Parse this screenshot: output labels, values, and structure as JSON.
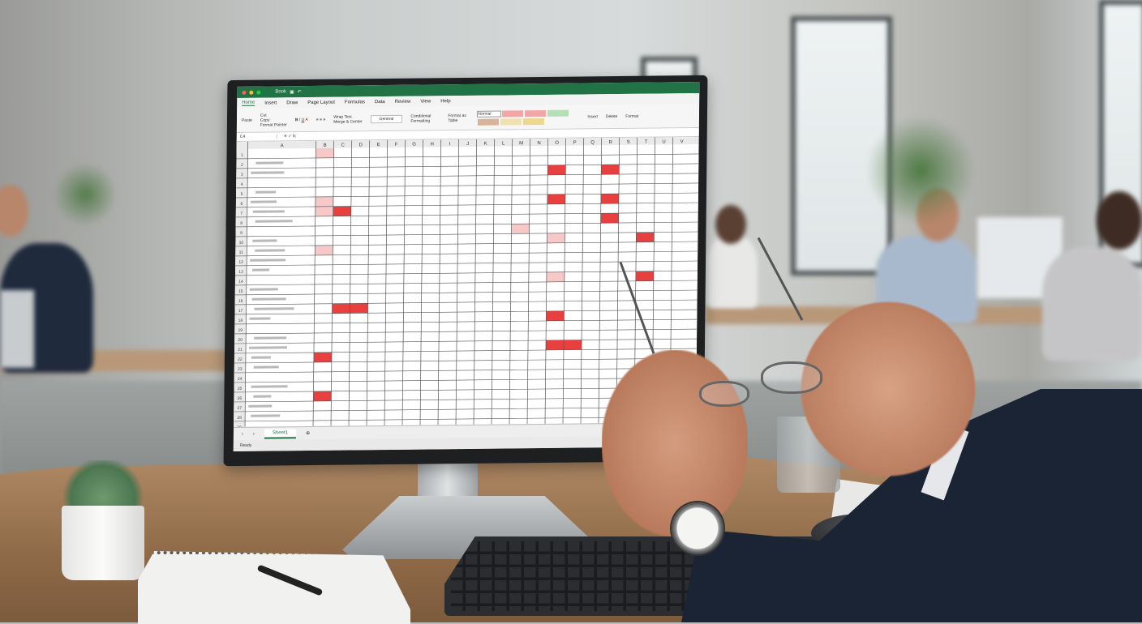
{
  "scene": {
    "description_elements": [
      "office",
      "monitor",
      "keyboard",
      "mouse",
      "notebook",
      "succulent",
      "pencil-cup",
      "eyeglasses",
      "wristwatch"
    ]
  },
  "spreadsheet": {
    "title": "Book",
    "menu_tabs": [
      "Home",
      "Insert",
      "Draw",
      "Page Layout",
      "Formulas",
      "Data",
      "Review",
      "View",
      "Help"
    ],
    "ribbon": {
      "paste": "Paste",
      "cut": "Cut",
      "copy": "Copy",
      "format_painter": "Format Painter",
      "wrap_text": "Wrap Text",
      "merge_center": "Merge & Center",
      "number_format": "General",
      "conditional_formatting": "Conditional Formatting",
      "format_as_table": "Format as Table",
      "style_normal": "Normal",
      "style_colors": [
        "#f4a6a6",
        "#f4a6a6",
        "#b5dfb7",
        "#d8b49a",
        "#f0e2b0",
        "#ecd98c"
      ],
      "insert": "Insert",
      "delete": "Delete",
      "format": "Format"
    },
    "name_box": "C4",
    "columns": [
      "A",
      "B",
      "C",
      "D",
      "E",
      "F",
      "G",
      "H",
      "I",
      "J",
      "K",
      "L",
      "M",
      "N",
      "O",
      "P",
      "Q",
      "R",
      "S",
      "T",
      "U",
      "V"
    ],
    "row_count": 29,
    "highlight_color": "#e8403e",
    "highlighted_cells": [
      {
        "row": 3,
        "col": "O"
      },
      {
        "row": 3,
        "col": "R"
      },
      {
        "row": 6,
        "col": "O"
      },
      {
        "row": 6,
        "col": "R"
      },
      {
        "row": 7,
        "col": "C"
      },
      {
        "row": 8,
        "col": "R"
      },
      {
        "row": 10,
        "col": "T"
      },
      {
        "row": 14,
        "col": "T"
      },
      {
        "row": 17,
        "col": "C"
      },
      {
        "row": 17,
        "col": "D"
      },
      {
        "row": 18,
        "col": "O"
      },
      {
        "row": 21,
        "col": "O"
      },
      {
        "row": 21,
        "col": "P"
      },
      {
        "row": 22,
        "col": "B"
      },
      {
        "row": 26,
        "col": "B"
      }
    ],
    "pink_cells": [
      {
        "row": 6,
        "col": "B"
      },
      {
        "row": 7,
        "col": "B"
      },
      {
        "row": 9,
        "col": "M"
      },
      {
        "row": 10,
        "col": "O"
      },
      {
        "row": 11,
        "col": "B"
      },
      {
        "row": 14,
        "col": "O"
      },
      {
        "row": 1,
        "col": "B"
      }
    ],
    "sheet_tab": "Sheet1",
    "status": "Ready"
  }
}
